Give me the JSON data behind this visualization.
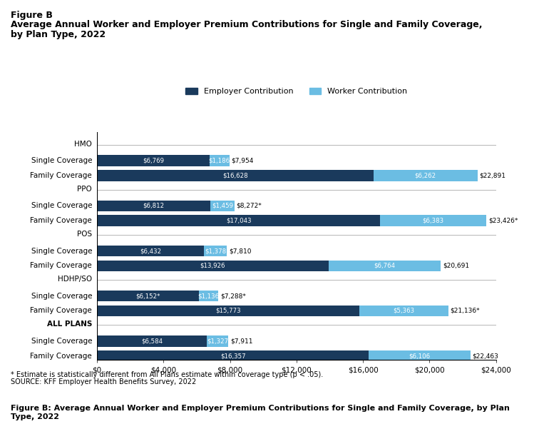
{
  "title_line1": "Figure B",
  "title_line2": "Average Annual Worker and Employer Premium Contributions for Single and Family Coverage,",
  "title_line3": "by Plan Type, 2022",
  "employer_color": "#1a3a5c",
  "worker_color": "#6bbde3",
  "background_color": "#ffffff",
  "footer_bg_color": "#dce9f5",
  "xlim": [
    0,
    24000
  ],
  "xticks": [
    0,
    4000,
    8000,
    12000,
    16000,
    20000,
    24000
  ],
  "xtick_labels": [
    "$0",
    "$4,000",
    "$8,000",
    "$12,000",
    "$16,000",
    "$20,000",
    "$24,000"
  ],
  "note": "* Estimate is statistically different from All Plans estimate within coverage type (p < .05).",
  "source": "SOURCE: KFF Employer Health Benefits Survey, 2022",
  "footer": "Figure B: Average Annual Worker and Employer Premium Contributions for Single and Family Coverage, by Plan\nType, 2022",
  "rows": [
    {
      "label": "HMO",
      "type": "header",
      "employer": null,
      "worker": null,
      "total_label": null
    },
    {
      "label": "Single Coverage",
      "type": "bar",
      "employer": 6769,
      "worker": 1186,
      "employer_label": "$6,769",
      "worker_label": "$1,186",
      "total_label": "$7,954",
      "total_asterisk": false
    },
    {
      "label": "Family Coverage",
      "type": "bar",
      "employer": 16628,
      "worker": 6262,
      "employer_label": "$16,628",
      "worker_label": "$6,262",
      "total_label": "$22,891",
      "total_asterisk": false
    },
    {
      "label": "PPO",
      "type": "header",
      "employer": null,
      "worker": null,
      "total_label": null
    },
    {
      "label": "Single Coverage",
      "type": "bar",
      "employer": 6812,
      "worker": 1459,
      "employer_label": "$6,812",
      "worker_label": "$1,459",
      "total_label": "$8,272*",
      "total_asterisk": true
    },
    {
      "label": "Family Coverage",
      "type": "bar",
      "employer": 17043,
      "worker": 6383,
      "employer_label": "$17,043",
      "worker_label": "$6,383",
      "total_label": "$23,426*",
      "total_asterisk": true
    },
    {
      "label": "POS",
      "type": "header",
      "employer": null,
      "worker": null,
      "total_label": null
    },
    {
      "label": "Single Coverage",
      "type": "bar",
      "employer": 6432,
      "worker": 1378,
      "employer_label": "$6,432",
      "worker_label": "$1,378",
      "total_label": "$7,810",
      "total_asterisk": false
    },
    {
      "label": "Family Coverage",
      "type": "bar",
      "employer": 13926,
      "worker": 6764,
      "employer_label": "$13,926",
      "worker_label": "$6,764",
      "total_label": "$20,691",
      "total_asterisk": false
    },
    {
      "label": "HDHP/SO",
      "type": "header",
      "employer": null,
      "worker": null,
      "total_label": null
    },
    {
      "label": "Single Coverage",
      "type": "bar",
      "employer": 6152,
      "worker": 1136,
      "employer_label": "$6,152*",
      "worker_label": "$1,136",
      "total_label": "$7,288*",
      "total_asterisk": true
    },
    {
      "label": "Family Coverage",
      "type": "bar",
      "employer": 15773,
      "worker": 5363,
      "employer_label": "$15,773",
      "worker_label": "$5,363",
      "total_label": "$21,136*",
      "total_asterisk": true
    },
    {
      "label": "ALL PLANS",
      "type": "header",
      "employer": null,
      "worker": null,
      "total_label": null
    },
    {
      "label": "Single Coverage",
      "type": "bar",
      "employer": 6584,
      "worker": 1327,
      "employer_label": "$6,584",
      "worker_label": "$1,327",
      "total_label": "$7,911",
      "total_asterisk": false
    },
    {
      "label": "Family Coverage",
      "type": "bar",
      "employer": 16357,
      "worker": 6106,
      "employer_label": "$16,357",
      "worker_label": "$6,106",
      "total_label": "$22,463",
      "total_asterisk": false
    }
  ]
}
